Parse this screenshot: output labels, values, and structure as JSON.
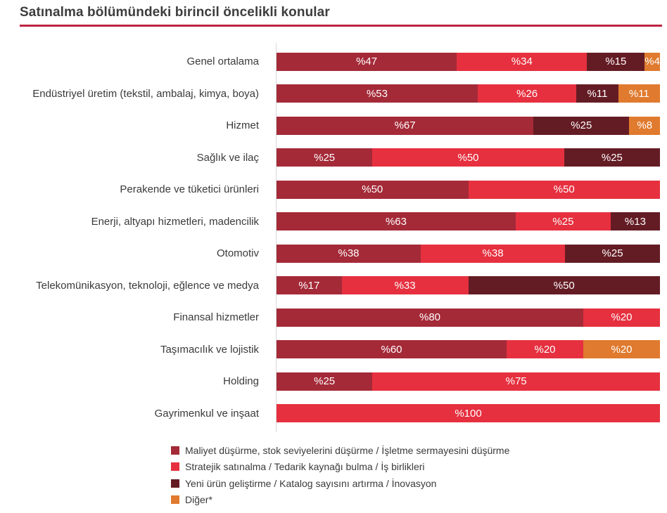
{
  "title": "Satınalma bölümündeki birincil öncelikli konular",
  "colors": {
    "title_text": "#3d3d3d",
    "title_rule": "#be2440",
    "axis_line": "#d9d9d9",
    "bar_value_text": "#ffffff",
    "series": [
      "#a42a38",
      "#e6303f",
      "#641c24",
      "#e07a2e"
    ]
  },
  "chart_data": {
    "type": "bar",
    "orientation": "horizontal",
    "stacked": true,
    "unit": "percent",
    "value_label_prefix": "%",
    "xlim": [
      0,
      100
    ],
    "grid": false,
    "legend_position": "bottom",
    "series_names": [
      "Maliyet düşürme, stok seviyelerini düşürme / İşletme sermayesini düşürme",
      "Stratejik satınalma / Tedarik kaynağı bulma / İş birlikleri",
      "Yeni ürün geliştirme / Katalog sayısını artırma / İnovasyon",
      "Diğer*"
    ],
    "categories": [
      "Genel ortalama",
      "Endüstriyel üretim (tekstil, ambalaj, kimya, boya)",
      "Hizmet",
      "Sağlık ve ilaç",
      "Perakende ve tüketici ürünleri",
      "Enerji, altyapı hizmetleri, madencilik",
      "Otomotiv",
      "Telekomünikasyon, teknoloji, eğlence ve medya",
      "Finansal hizmetler",
      "Taşımacılık ve lojistik",
      "Holding",
      "Gayrimenkul ve inşaat"
    ],
    "rows": [
      {
        "category": "Genel ortalama",
        "segments": [
          {
            "series": 0,
            "value": 47
          },
          {
            "series": 1,
            "value": 34
          },
          {
            "series": 2,
            "value": 15
          },
          {
            "series": 3,
            "value": 4
          }
        ]
      },
      {
        "category": "Endüstriyel üretim (tekstil, ambalaj, kimya, boya)",
        "segments": [
          {
            "series": 0,
            "value": 53
          },
          {
            "series": 1,
            "value": 26
          },
          {
            "series": 2,
            "value": 11
          },
          {
            "series": 3,
            "value": 11
          }
        ]
      },
      {
        "category": "Hizmet",
        "segments": [
          {
            "series": 0,
            "value": 67
          },
          {
            "series": 2,
            "value": 25
          },
          {
            "series": 3,
            "value": 8
          }
        ]
      },
      {
        "category": "Sağlık ve ilaç",
        "segments": [
          {
            "series": 0,
            "value": 25
          },
          {
            "series": 1,
            "value": 50
          },
          {
            "series": 2,
            "value": 25
          }
        ]
      },
      {
        "category": "Perakende ve tüketici ürünleri",
        "segments": [
          {
            "series": 0,
            "value": 50
          },
          {
            "series": 1,
            "value": 50
          }
        ]
      },
      {
        "category": "Enerji, altyapı hizmetleri, madencilik",
        "segments": [
          {
            "series": 0,
            "value": 63
          },
          {
            "series": 1,
            "value": 25
          },
          {
            "series": 2,
            "value": 13
          }
        ]
      },
      {
        "category": "Otomotiv",
        "segments": [
          {
            "series": 0,
            "value": 38
          },
          {
            "series": 1,
            "value": 38
          },
          {
            "series": 2,
            "value": 25
          }
        ]
      },
      {
        "category": "Telekomünikasyon, teknoloji, eğlence ve medya",
        "segments": [
          {
            "series": 0,
            "value": 17
          },
          {
            "series": 1,
            "value": 33
          },
          {
            "series": 2,
            "value": 50
          }
        ]
      },
      {
        "category": "Finansal hizmetler",
        "segments": [
          {
            "series": 0,
            "value": 80
          },
          {
            "series": 1,
            "value": 20
          }
        ]
      },
      {
        "category": "Taşımacılık ve lojistik",
        "segments": [
          {
            "series": 0,
            "value": 60
          },
          {
            "series": 1,
            "value": 20
          },
          {
            "series": 3,
            "value": 20
          }
        ]
      },
      {
        "category": "Holding",
        "segments": [
          {
            "series": 0,
            "value": 25
          },
          {
            "series": 1,
            "value": 75
          }
        ]
      },
      {
        "category": "Gayrimenkul ve inşaat",
        "segments": [
          {
            "series": 1,
            "value": 100
          }
        ]
      }
    ],
    "legend": [
      {
        "label": "Maliyet düşürme, stok seviyelerini düşürme / İşletme sermayesini düşürme",
        "color": "#a42a38"
      },
      {
        "label": "Stratejik satınalma / Tedarik kaynağı bulma / İş birlikleri",
        "color": "#e6303f"
      },
      {
        "label": "Yeni ürün geliştirme / Katalog sayısını artırma / İnovasyon",
        "color": "#641c24"
      },
      {
        "label": "Diğer*",
        "color": "#e07a2e"
      }
    ]
  }
}
